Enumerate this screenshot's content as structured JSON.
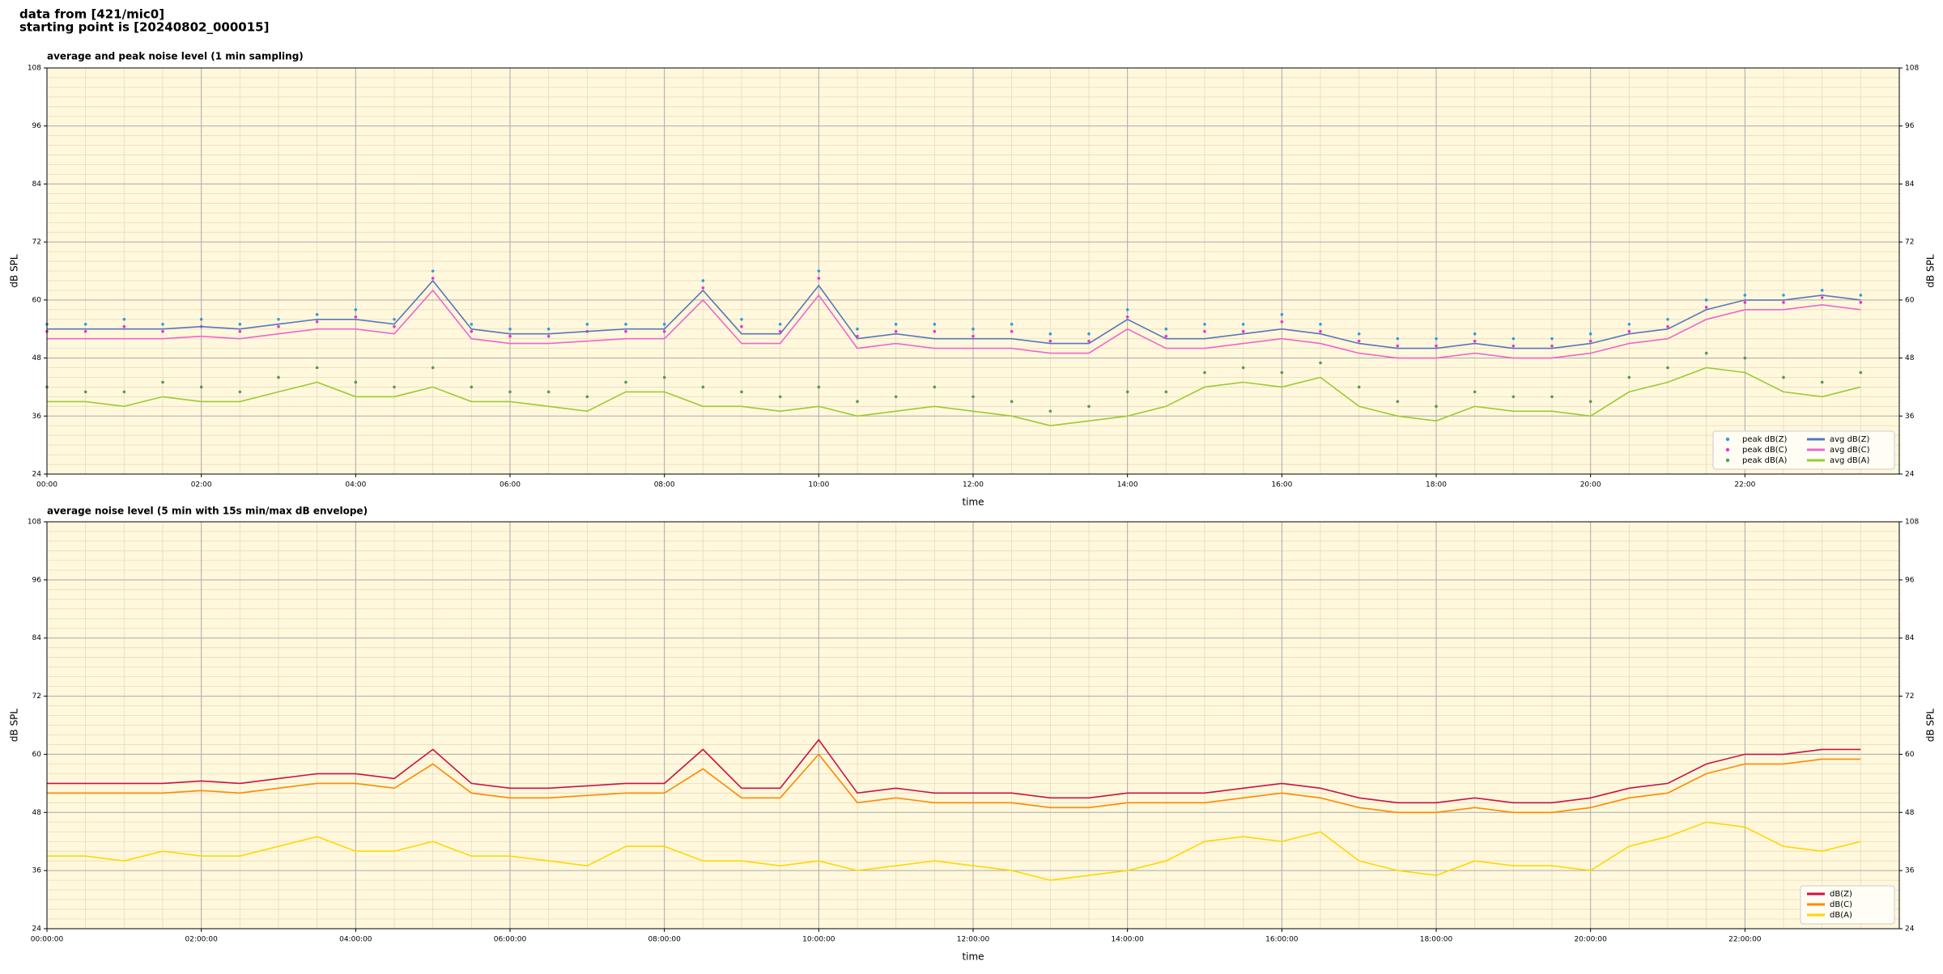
{
  "header": [
    "data from [421/mic0]",
    "starting point is [20240802_000015]"
  ],
  "chart_data": [
    {
      "type": "line",
      "title": "average and peak noise level (1 min sampling)",
      "xlabel": "time",
      "ylabel": "dB SPL",
      "x": [
        0,
        0.5,
        1,
        1.5,
        2,
        2.5,
        3,
        3.5,
        4,
        4.5,
        5,
        5.5,
        6,
        6.5,
        7,
        7.5,
        8,
        8.5,
        9,
        9.5,
        10,
        10.5,
        11,
        11.5,
        12,
        12.5,
        13,
        13.5,
        14,
        14.5,
        15,
        15.5,
        16,
        16.5,
        17,
        17.5,
        18,
        18.5,
        19,
        19.5,
        20,
        20.5,
        21,
        21.5,
        22,
        22.5,
        23,
        23.5
      ],
      "xlim": [
        0,
        24
      ],
      "xticks": [
        {
          "value": 0,
          "label": "00:00"
        },
        {
          "value": 2,
          "label": "02:00"
        },
        {
          "value": 4,
          "label": "04:00"
        },
        {
          "value": 6,
          "label": "06:00"
        },
        {
          "value": 8,
          "label": "08:00"
        },
        {
          "value": 10,
          "label": "10:00"
        },
        {
          "value": 12,
          "label": "12:00"
        },
        {
          "value": 14,
          "label": "14:00"
        },
        {
          "value": 16,
          "label": "16:00"
        },
        {
          "value": 18,
          "label": "18:00"
        },
        {
          "value": 20,
          "label": "20:00"
        },
        {
          "value": 22,
          "label": "22:00"
        }
      ],
      "ylim": [
        24,
        108
      ],
      "yticks": [
        24,
        36,
        48,
        60,
        72,
        84,
        96,
        108
      ],
      "grid": true,
      "legend": "lower right",
      "legend_columns": 2,
      "series": [
        {
          "name": "peak dB(Z)",
          "color": "#3399dd",
          "kind": "scatter",
          "values": [
            55,
            55,
            56,
            55,
            56,
            55,
            56,
            57,
            58,
            56,
            66,
            55,
            54,
            54,
            55,
            55,
            55,
            64,
            56,
            55,
            66,
            54,
            55,
            55,
            54,
            55,
            53,
            53,
            58,
            54,
            55,
            55,
            57,
            55,
            53,
            52,
            52,
            53,
            52,
            52,
            53,
            55,
            56,
            60,
            61,
            61,
            62,
            61
          ]
        },
        {
          "name": "peak dB(C)",
          "color": "#ee33cc",
          "kind": "scatter",
          "values": [
            53.5,
            53.5,
            54.5,
            53.5,
            54.5,
            53.5,
            54.5,
            55.5,
            56.5,
            54.5,
            64.5,
            53.5,
            52.5,
            52.5,
            53.5,
            53.5,
            53.5,
            62.5,
            54.5,
            53.5,
            64.5,
            52.5,
            53.5,
            53.5,
            52.5,
            53.5,
            51.5,
            51.5,
            56.5,
            52.5,
            53.5,
            53.5,
            55.5,
            53.5,
            51.5,
            50.5,
            50.5,
            51.5,
            50.5,
            50.5,
            51.5,
            53.5,
            54.5,
            58.5,
            59.5,
            59.5,
            60.5,
            59.5
          ]
        },
        {
          "name": "peak dB(A)",
          "color": "#55995a",
          "kind": "scatter",
          "values": [
            42,
            41,
            41,
            43,
            42,
            41,
            44,
            46,
            43,
            42,
            46,
            42,
            41,
            41,
            40,
            43,
            44,
            42,
            41,
            40,
            42,
            39,
            40,
            42,
            40,
            39,
            37,
            38,
            41,
            41,
            45,
            46,
            45,
            47,
            42,
            39,
            38,
            41,
            40,
            40,
            39,
            44,
            46,
            49,
            48,
            44,
            43,
            45
          ]
        },
        {
          "name": "avg dB(Z)",
          "color": "#5577bb",
          "kind": "line",
          "values": [
            54,
            54,
            54,
            54,
            54.5,
            54,
            55,
            56,
            56,
            55,
            64,
            54,
            53,
            53,
            53.5,
            54,
            54,
            62,
            53,
            53,
            63,
            52,
            53,
            52,
            52,
            52,
            51,
            51,
            56,
            52,
            52,
            53,
            54,
            53,
            51,
            50,
            50,
            51,
            50,
            50,
            51,
            53,
            54,
            58,
            60,
            60,
            61,
            60
          ]
        },
        {
          "name": "avg dB(C)",
          "color": "#ee66cc",
          "kind": "line",
          "values": [
            52,
            52,
            52,
            52,
            52.5,
            52,
            53,
            54,
            54,
            53,
            62,
            52,
            51,
            51,
            51.5,
            52,
            52,
            60,
            51,
            51,
            61,
            50,
            51,
            50,
            50,
            50,
            49,
            49,
            54,
            50,
            50,
            51,
            52,
            51,
            49,
            48,
            48,
            49,
            48,
            48,
            49,
            51,
            52,
            56,
            58,
            58,
            59,
            58
          ]
        },
        {
          "name": "avg dB(A)",
          "color": "#99cc33",
          "kind": "line",
          "values": [
            39,
            39,
            38,
            40,
            39,
            39,
            41,
            43,
            40,
            40,
            42,
            39,
            39,
            38,
            37,
            41,
            41,
            38,
            38,
            37,
            38,
            36,
            37,
            38,
            37,
            36,
            34,
            35,
            36,
            38,
            42,
            43,
            42,
            44,
            38,
            36,
            35,
            38,
            37,
            37,
            36,
            41,
            43,
            46,
            45,
            41,
            40,
            42
          ]
        }
      ]
    },
    {
      "type": "line",
      "title": "average noise level (5 min with 15s min/max dB envelope)",
      "xlabel": "time",
      "ylabel": "dB SPL",
      "x": [
        0,
        0.5,
        1,
        1.5,
        2,
        2.5,
        3,
        3.5,
        4,
        4.5,
        5,
        5.5,
        6,
        6.5,
        7,
        7.5,
        8,
        8.5,
        9,
        9.5,
        10,
        10.5,
        11,
        11.5,
        12,
        12.5,
        13,
        13.5,
        14,
        14.5,
        15,
        15.5,
        16,
        16.5,
        17,
        17.5,
        18,
        18.5,
        19,
        19.5,
        20,
        20.5,
        21,
        21.5,
        22,
        22.5,
        23,
        23.5
      ],
      "xlim": [
        0,
        24
      ],
      "xticks": [
        {
          "value": 0,
          "label": "00:00:00"
        },
        {
          "value": 2,
          "label": "02:00:00"
        },
        {
          "value": 4,
          "label": "04:00:00"
        },
        {
          "value": 6,
          "label": "06:00:00"
        },
        {
          "value": 8,
          "label": "08:00:00"
        },
        {
          "value": 10,
          "label": "10:00:00"
        },
        {
          "value": 12,
          "label": "12:00:00"
        },
        {
          "value": 14,
          "label": "14:00:00"
        },
        {
          "value": 16,
          "label": "16:00:00"
        },
        {
          "value": 18,
          "label": "18:00:00"
        },
        {
          "value": 20,
          "label": "20:00:00"
        },
        {
          "value": 22,
          "label": "22:00:00"
        }
      ],
      "ylim": [
        24,
        108
      ],
      "yticks": [
        24,
        36,
        48,
        60,
        72,
        84,
        96,
        108
      ],
      "grid": true,
      "legend": "lower right",
      "legend_columns": 1,
      "series": [
        {
          "name": "dB(Z)",
          "color": "#cc1144",
          "kind": "line",
          "values": [
            54,
            54,
            54,
            54,
            54.5,
            54,
            55,
            56,
            56,
            55,
            61,
            54,
            53,
            53,
            53.5,
            54,
            54,
            61,
            53,
            53,
            63,
            52,
            53,
            52,
            52,
            52,
            51,
            51,
            52,
            52,
            52,
            53,
            54,
            53,
            51,
            50,
            50,
            51,
            50,
            50,
            51,
            53,
            54,
            58,
            60,
            60,
            61,
            61
          ]
        },
        {
          "name": "dB(C)",
          "color": "#ff8800",
          "kind": "line",
          "values": [
            52,
            52,
            52,
            52,
            52.5,
            52,
            53,
            54,
            54,
            53,
            58,
            52,
            51,
            51,
            51.5,
            52,
            52,
            57,
            51,
            51,
            60,
            50,
            51,
            50,
            50,
            50,
            49,
            49,
            50,
            50,
            50,
            51,
            52,
            51,
            49,
            48,
            48,
            49,
            48,
            48,
            49,
            51,
            52,
            56,
            58,
            58,
            59,
            59
          ]
        },
        {
          "name": "dB(A)",
          "color": "#ffd700",
          "kind": "line",
          "values": [
            39,
            39,
            38,
            40,
            39,
            39,
            41,
            43,
            40,
            40,
            42,
            39,
            39,
            38,
            37,
            41,
            41,
            38,
            38,
            37,
            38,
            36,
            37,
            38,
            37,
            36,
            34,
            35,
            36,
            38,
            42,
            43,
            42,
            44,
            38,
            36,
            35,
            38,
            37,
            37,
            36,
            41,
            43,
            46,
            45,
            41,
            40,
            42
          ]
        }
      ]
    }
  ]
}
